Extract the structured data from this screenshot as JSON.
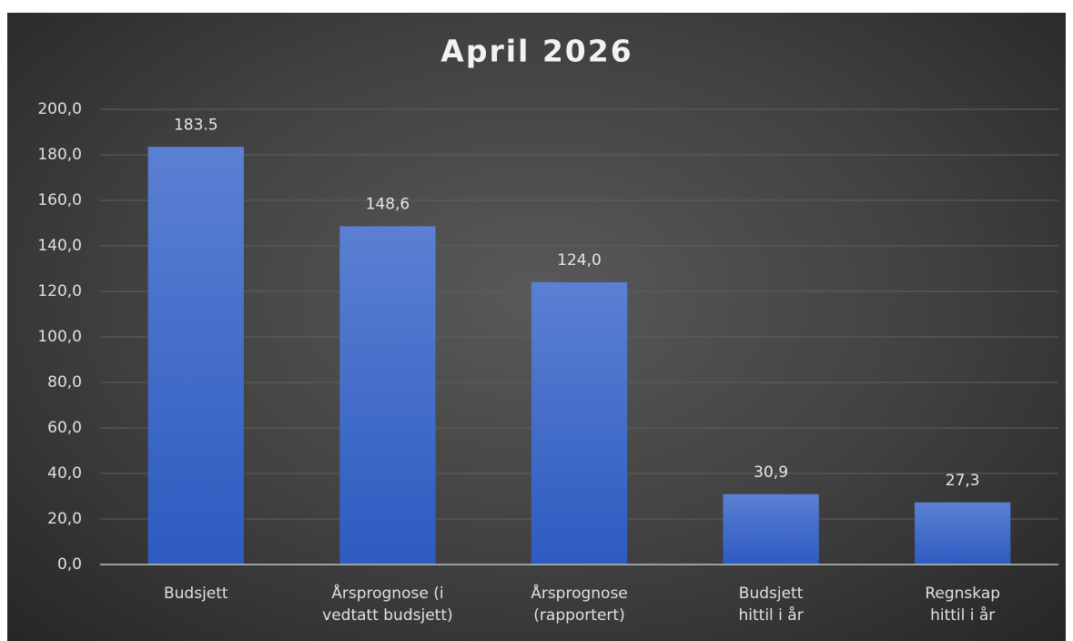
{
  "chart_data": {
    "type": "bar",
    "title": "April 2026",
    "categories": [
      "Budsjett",
      "Årsprognose (i\nvedtatt budsjett)",
      "Årsprognose\n(rapportert)",
      "Budsjett\nhittil i år",
      "Regnskap\nhittil i år"
    ],
    "values": [
      183.5,
      148.6,
      124.0,
      30.9,
      27.3
    ],
    "value_labels": [
      "183.5",
      "148,6",
      "124,0",
      "30,9",
      "27,3"
    ],
    "color": "#3a66c8",
    "ylim": [
      0,
      200
    ],
    "yticks": [
      {
        "value": 0,
        "label": "0,0"
      },
      {
        "value": 20,
        "label": "20,0"
      },
      {
        "value": 40,
        "label": "40,0"
      },
      {
        "value": 60,
        "label": "60,0"
      },
      {
        "value": 80,
        "label": "80,0"
      },
      {
        "value": 100,
        "label": "100,0"
      },
      {
        "value": 120,
        "label": "120,0"
      },
      {
        "value": 140,
        "label": "140,0"
      },
      {
        "value": 160,
        "label": "160,0"
      },
      {
        "value": 180,
        "label": "180,0"
      },
      {
        "value": 200,
        "label": "200,0"
      }
    ],
    "grid": true
  }
}
